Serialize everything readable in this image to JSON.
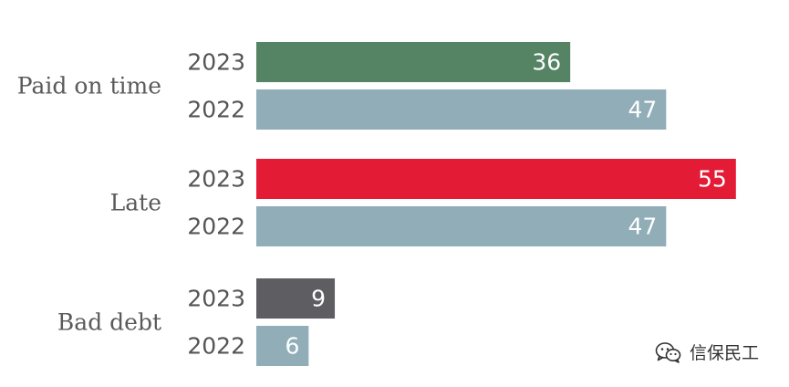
{
  "chart_data": {
    "type": "bar",
    "orientation": "horizontal",
    "categories": [
      "Paid on time",
      "Late",
      "Bad debt"
    ],
    "series": [
      {
        "name": "2023",
        "values": [
          36,
          55,
          9
        ]
      },
      {
        "name": "2022",
        "values": [
          47,
          47,
          6
        ]
      }
    ],
    "xlim": [
      0,
      55
    ],
    "grid": false,
    "colors": {
      "Paid on time_2023": "#548464",
      "Late_2023": "#e31b35",
      "Bad debt_2023": "#5e5e62",
      "2022": "#91adb8"
    }
  },
  "watermark": {
    "text": "信保民工",
    "icon": "wechat-icon"
  }
}
